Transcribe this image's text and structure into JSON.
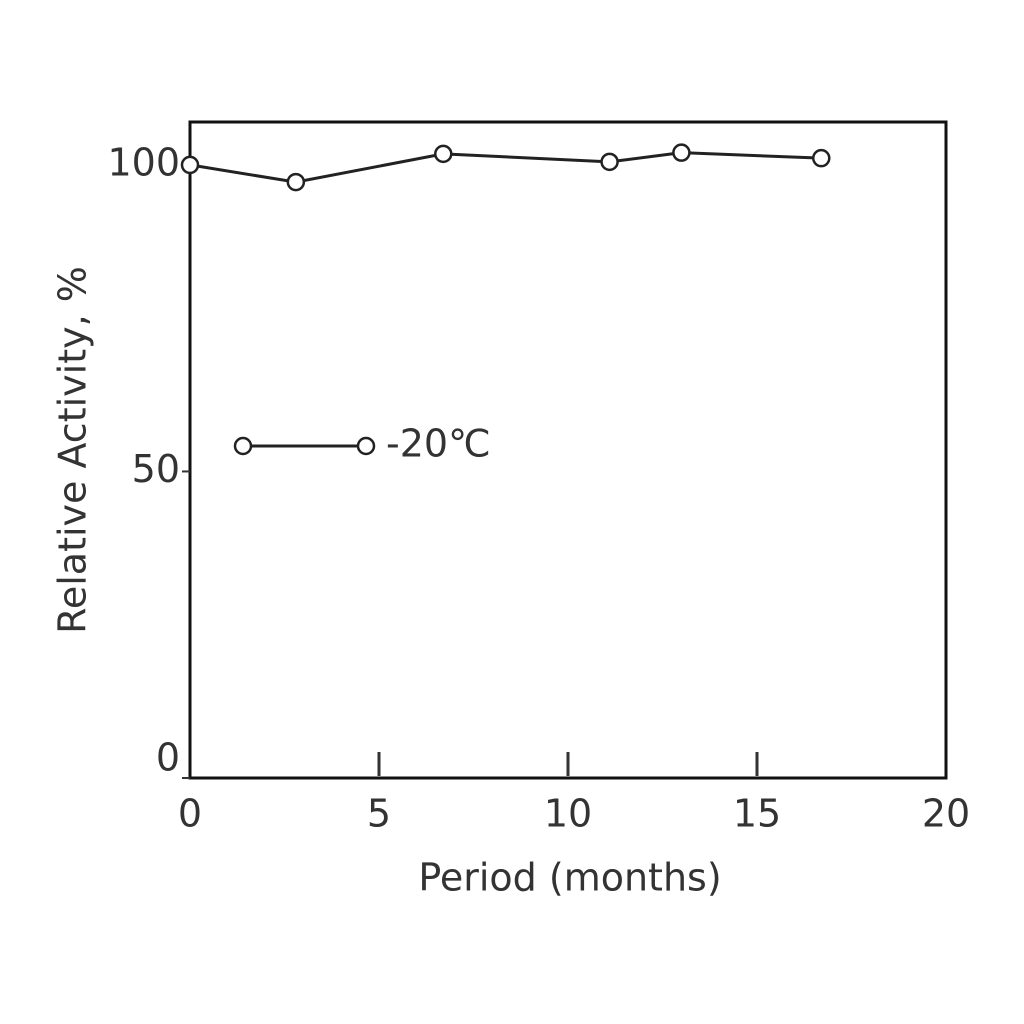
{
  "chart_data": {
    "type": "line",
    "x_label": "Period (months)",
    "y_label": "Relative Activity, %",
    "x": [
      0,
      2.8,
      6.7,
      11.1,
      13.0,
      16.7
    ],
    "series": [
      {
        "name": "-20℃",
        "color": "#222222",
        "values": [
          100,
          97.2,
          101.8,
          100.5,
          102,
          101.1
        ]
      }
    ],
    "xlim": [
      0,
      20
    ],
    "xticks": [
      0,
      5,
      10,
      15,
      20
    ],
    "ylim": [
      0,
      107
    ],
    "yticks": [
      0,
      50,
      100
    ],
    "grid": false,
    "legend": "left"
  }
}
